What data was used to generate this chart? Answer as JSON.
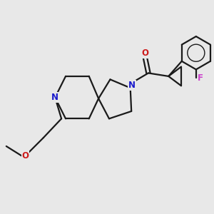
{
  "bg_color": "#e8e8e8",
  "bond_color": "#1a1a1a",
  "N_color": "#1a1acc",
  "O_color": "#cc1a1a",
  "F_color": "#cc44cc",
  "line_width": 1.6,
  "figsize": [
    3.0,
    3.0
  ],
  "dpi": 100,
  "xlim": [
    0,
    10
  ],
  "ylim": [
    0,
    10
  ],
  "spiro_x": 4.6,
  "spiro_y": 5.4
}
